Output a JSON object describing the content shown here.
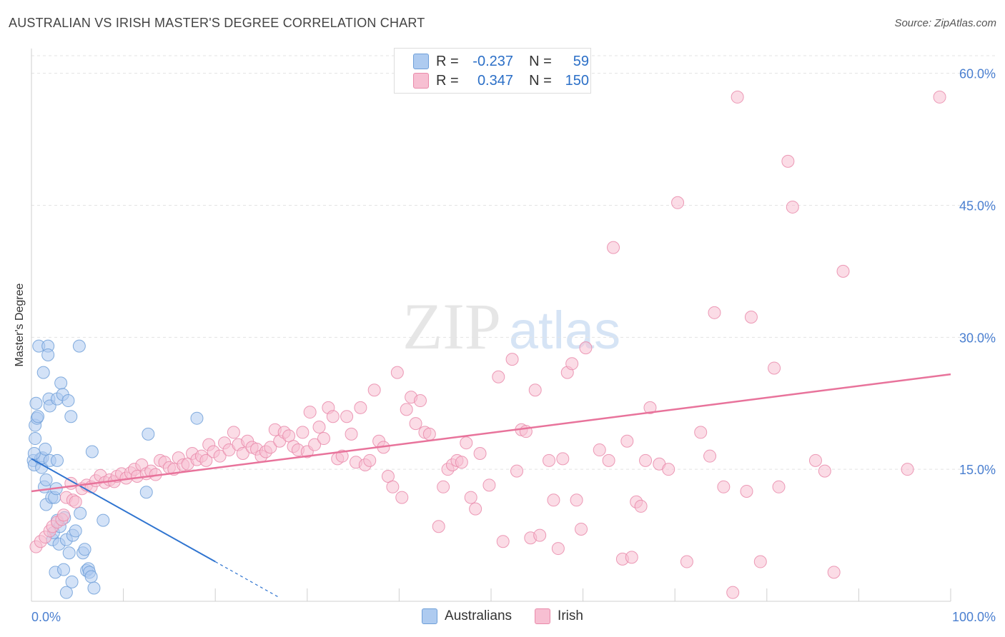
{
  "title": "AUSTRALIAN VS IRISH MASTER'S DEGREE CORRELATION CHART",
  "source": "Source: ZipAtlas.com",
  "watermark": {
    "left": "ZIP",
    "right": "atlas"
  },
  "legend": {
    "rows": [
      {
        "label": "R =",
        "r": "-0.237",
        "n_label": "N =",
        "n": "59",
        "fill": "#aecbf0",
        "stroke": "#6f9fd8"
      },
      {
        "label": "R =",
        "r": "0.347",
        "n_label": "N =",
        "n": "150",
        "fill": "#f7bfd2",
        "stroke": "#e98aaa"
      }
    ]
  },
  "bottom_legend": [
    {
      "name": "Australians",
      "fill": "#aecbf0",
      "stroke": "#6f9fd8"
    },
    {
      "name": "Irish",
      "fill": "#f7bfd2",
      "stroke": "#e98aaa"
    }
  ],
  "chart_data": {
    "type": "scatter",
    "title": "AUSTRALIAN VS IRISH MASTER'S DEGREE CORRELATION CHART",
    "xlabel": "",
    "ylabel": "Master's Degree",
    "xlim": [
      0,
      100
    ],
    "ylim": [
      0,
      62
    ],
    "x_tick_labels": [
      "0.0%",
      "100.0%"
    ],
    "y_ticks": [
      15,
      30,
      45,
      60
    ],
    "y_tick_labels": [
      "15.0%",
      "30.0%",
      "45.0%",
      "60.0%"
    ],
    "grid": true,
    "legend_position": "top-center",
    "series": [
      {
        "name": "Australians",
        "color": "#6f9fd8",
        "fill": "#aecbf0",
        "trend": {
          "x0": 0,
          "y0": 16.2,
          "x1": 20,
          "y1": 4.5,
          "dash_to_x": 27
        },
        "points": [
          [
            0.2,
            16.0
          ],
          [
            0.3,
            15.5
          ],
          [
            0.4,
            18.5
          ],
          [
            0.4,
            20.0
          ],
          [
            0.5,
            22.5
          ],
          [
            0.6,
            20.8
          ],
          [
            0.7,
            21.0
          ],
          [
            0.8,
            29.0
          ],
          [
            1.0,
            16.2
          ],
          [
            1.1,
            15.2
          ],
          [
            1.2,
            16.3
          ],
          [
            1.3,
            26.0
          ],
          [
            1.4,
            13.0
          ],
          [
            1.5,
            17.3
          ],
          [
            1.6,
            13.8
          ],
          [
            1.6,
            11.0
          ],
          [
            1.8,
            29.0
          ],
          [
            1.8,
            28.0
          ],
          [
            1.9,
            23.0
          ],
          [
            2.0,
            16.0
          ],
          [
            2.0,
            22.2
          ],
          [
            2.2,
            11.8
          ],
          [
            2.3,
            7.0
          ],
          [
            2.4,
            7.8
          ],
          [
            2.5,
            11.8
          ],
          [
            2.6,
            3.3
          ],
          [
            2.7,
            12.8
          ],
          [
            2.8,
            16.0
          ],
          [
            2.8,
            9.2
          ],
          [
            2.8,
            23.0
          ],
          [
            3.0,
            6.5
          ],
          [
            3.1,
            8.5
          ],
          [
            3.2,
            24.8
          ],
          [
            3.4,
            23.5
          ],
          [
            3.5,
            3.6
          ],
          [
            3.6,
            9.5
          ],
          [
            3.8,
            7.0
          ],
          [
            3.8,
            1.0
          ],
          [
            4.0,
            22.8
          ],
          [
            4.1,
            5.5
          ],
          [
            4.3,
            21.0
          ],
          [
            4.4,
            2.2
          ],
          [
            4.5,
            7.5
          ],
          [
            4.8,
            8.0
          ],
          [
            5.2,
            29.0
          ],
          [
            5.3,
            10.0
          ],
          [
            5.6,
            5.5
          ],
          [
            5.8,
            5.9
          ],
          [
            6.0,
            3.5
          ],
          [
            6.2,
            3.7
          ],
          [
            6.3,
            3.3
          ],
          [
            6.5,
            2.8
          ],
          [
            6.6,
            17.0
          ],
          [
            6.8,
            1.5
          ],
          [
            7.8,
            9.2
          ],
          [
            12.5,
            12.4
          ],
          [
            12.7,
            19.0
          ],
          [
            18.0,
            20.8
          ],
          [
            0.3,
            16.8
          ]
        ]
      },
      {
        "name": "Irish",
        "color": "#e98aaa",
        "fill": "#f7bfd2",
        "trend": {
          "x0": 0,
          "y0": 12.5,
          "x1": 100,
          "y1": 25.8
        },
        "points": [
          [
            0.5,
            6.2
          ],
          [
            1.0,
            6.8
          ],
          [
            1.5,
            7.3
          ],
          [
            2.0,
            8.0
          ],
          [
            2.3,
            8.5
          ],
          [
            2.8,
            9.0
          ],
          [
            3.3,
            9.3
          ],
          [
            3.5,
            9.8
          ],
          [
            3.8,
            11.8
          ],
          [
            4.3,
            13.4
          ],
          [
            4.5,
            11.5
          ],
          [
            4.8,
            11.3
          ],
          [
            5.5,
            12.8
          ],
          [
            6.0,
            13.2
          ],
          [
            6.5,
            13.0
          ],
          [
            7.0,
            13.7
          ],
          [
            7.5,
            14.3
          ],
          [
            8.0,
            13.5
          ],
          [
            8.5,
            13.8
          ],
          [
            9.0,
            13.6
          ],
          [
            9.3,
            14.2
          ],
          [
            9.8,
            14.5
          ],
          [
            10.3,
            14.0
          ],
          [
            10.8,
            14.6
          ],
          [
            11.2,
            15.0
          ],
          [
            11.5,
            14.2
          ],
          [
            12.0,
            15.5
          ],
          [
            12.5,
            14.5
          ],
          [
            13.0,
            14.8
          ],
          [
            13.5,
            14.4
          ],
          [
            14.0,
            16.0
          ],
          [
            14.5,
            15.8
          ],
          [
            15.0,
            15.2
          ],
          [
            15.5,
            15.0
          ],
          [
            16.0,
            16.3
          ],
          [
            16.5,
            15.5
          ],
          [
            17.0,
            15.6
          ],
          [
            17.5,
            16.8
          ],
          [
            18.0,
            16.1
          ],
          [
            18.5,
            16.5
          ],
          [
            19.0,
            16.0
          ],
          [
            19.3,
            17.8
          ],
          [
            19.8,
            17.0
          ],
          [
            20.5,
            16.5
          ],
          [
            21.0,
            18.0
          ],
          [
            21.5,
            17.2
          ],
          [
            22.0,
            19.2
          ],
          [
            22.5,
            17.8
          ],
          [
            23.0,
            16.8
          ],
          [
            23.5,
            18.2
          ],
          [
            24.0,
            17.5
          ],
          [
            24.5,
            17.3
          ],
          [
            25.0,
            16.5
          ],
          [
            25.5,
            17.0
          ],
          [
            26.0,
            17.5
          ],
          [
            26.5,
            19.5
          ],
          [
            27.0,
            18.2
          ],
          [
            27.5,
            19.2
          ],
          [
            28.0,
            18.8
          ],
          [
            28.5,
            17.6
          ],
          [
            29.0,
            17.2
          ],
          [
            29.5,
            19.2
          ],
          [
            30.0,
            17.0
          ],
          [
            30.3,
            21.5
          ],
          [
            30.8,
            17.8
          ],
          [
            31.3,
            19.8
          ],
          [
            31.8,
            18.5
          ],
          [
            32.3,
            22.0
          ],
          [
            32.8,
            21.0
          ],
          [
            33.3,
            16.2
          ],
          [
            33.8,
            16.5
          ],
          [
            34.3,
            21.0
          ],
          [
            34.8,
            19.0
          ],
          [
            35.3,
            15.8
          ],
          [
            35.8,
            22.0
          ],
          [
            36.3,
            15.5
          ],
          [
            36.8,
            16.0
          ],
          [
            37.3,
            24.0
          ],
          [
            37.8,
            18.2
          ],
          [
            38.3,
            17.5
          ],
          [
            38.8,
            14.2
          ],
          [
            39.3,
            13.0
          ],
          [
            39.8,
            26.0
          ],
          [
            40.3,
            11.8
          ],
          [
            40.8,
            21.8
          ],
          [
            41.3,
            23.2
          ],
          [
            41.8,
            20.2
          ],
          [
            42.3,
            22.8
          ],
          [
            42.8,
            19.2
          ],
          [
            43.3,
            19.0
          ],
          [
            44.3,
            8.5
          ],
          [
            44.8,
            13.0
          ],
          [
            45.3,
            15.0
          ],
          [
            45.8,
            15.5
          ],
          [
            46.3,
            16.0
          ],
          [
            46.8,
            15.8
          ],
          [
            47.3,
            18.0
          ],
          [
            47.8,
            11.8
          ],
          [
            48.3,
            10.5
          ],
          [
            48.8,
            16.8
          ],
          [
            49.8,
            13.2
          ],
          [
            50.8,
            25.5
          ],
          [
            51.3,
            6.8
          ],
          [
            52.3,
            27.5
          ],
          [
            52.8,
            14.8
          ],
          [
            53.3,
            19.5
          ],
          [
            53.8,
            19.3
          ],
          [
            54.3,
            7.2
          ],
          [
            54.8,
            24.0
          ],
          [
            55.3,
            7.5
          ],
          [
            56.3,
            16.0
          ],
          [
            56.8,
            11.5
          ],
          [
            57.3,
            6.0
          ],
          [
            57.8,
            16.2
          ],
          [
            58.3,
            26.0
          ],
          [
            58.8,
            27.0
          ],
          [
            59.3,
            11.5
          ],
          [
            59.8,
            8.2
          ],
          [
            60.3,
            28.8
          ],
          [
            61.8,
            17.2
          ],
          [
            62.8,
            16.0
          ],
          [
            63.3,
            40.2
          ],
          [
            64.3,
            4.8
          ],
          [
            64.8,
            18.2
          ],
          [
            65.3,
            5.0
          ],
          [
            65.8,
            11.3
          ],
          [
            66.3,
            10.8
          ],
          [
            66.8,
            16.0
          ],
          [
            67.3,
            22.0
          ],
          [
            68.3,
            15.6
          ],
          [
            69.3,
            15.0
          ],
          [
            70.3,
            45.3
          ],
          [
            71.3,
            4.5
          ],
          [
            72.8,
            19.2
          ],
          [
            73.8,
            16.5
          ],
          [
            74.3,
            32.8
          ],
          [
            75.3,
            13.0
          ],
          [
            76.3,
            1.0
          ],
          [
            76.8,
            57.3
          ],
          [
            77.8,
            12.5
          ],
          [
            78.3,
            32.3
          ],
          [
            79.3,
            4.5
          ],
          [
            80.8,
            26.5
          ],
          [
            81.3,
            13.0
          ],
          [
            82.3,
            50.0
          ],
          [
            82.8,
            44.8
          ],
          [
            85.3,
            16.0
          ],
          [
            86.3,
            14.8
          ],
          [
            87.3,
            3.3
          ],
          [
            88.3,
            37.5
          ],
          [
            95.3,
            15.0
          ],
          [
            98.8,
            57.3
          ]
        ]
      }
    ]
  }
}
